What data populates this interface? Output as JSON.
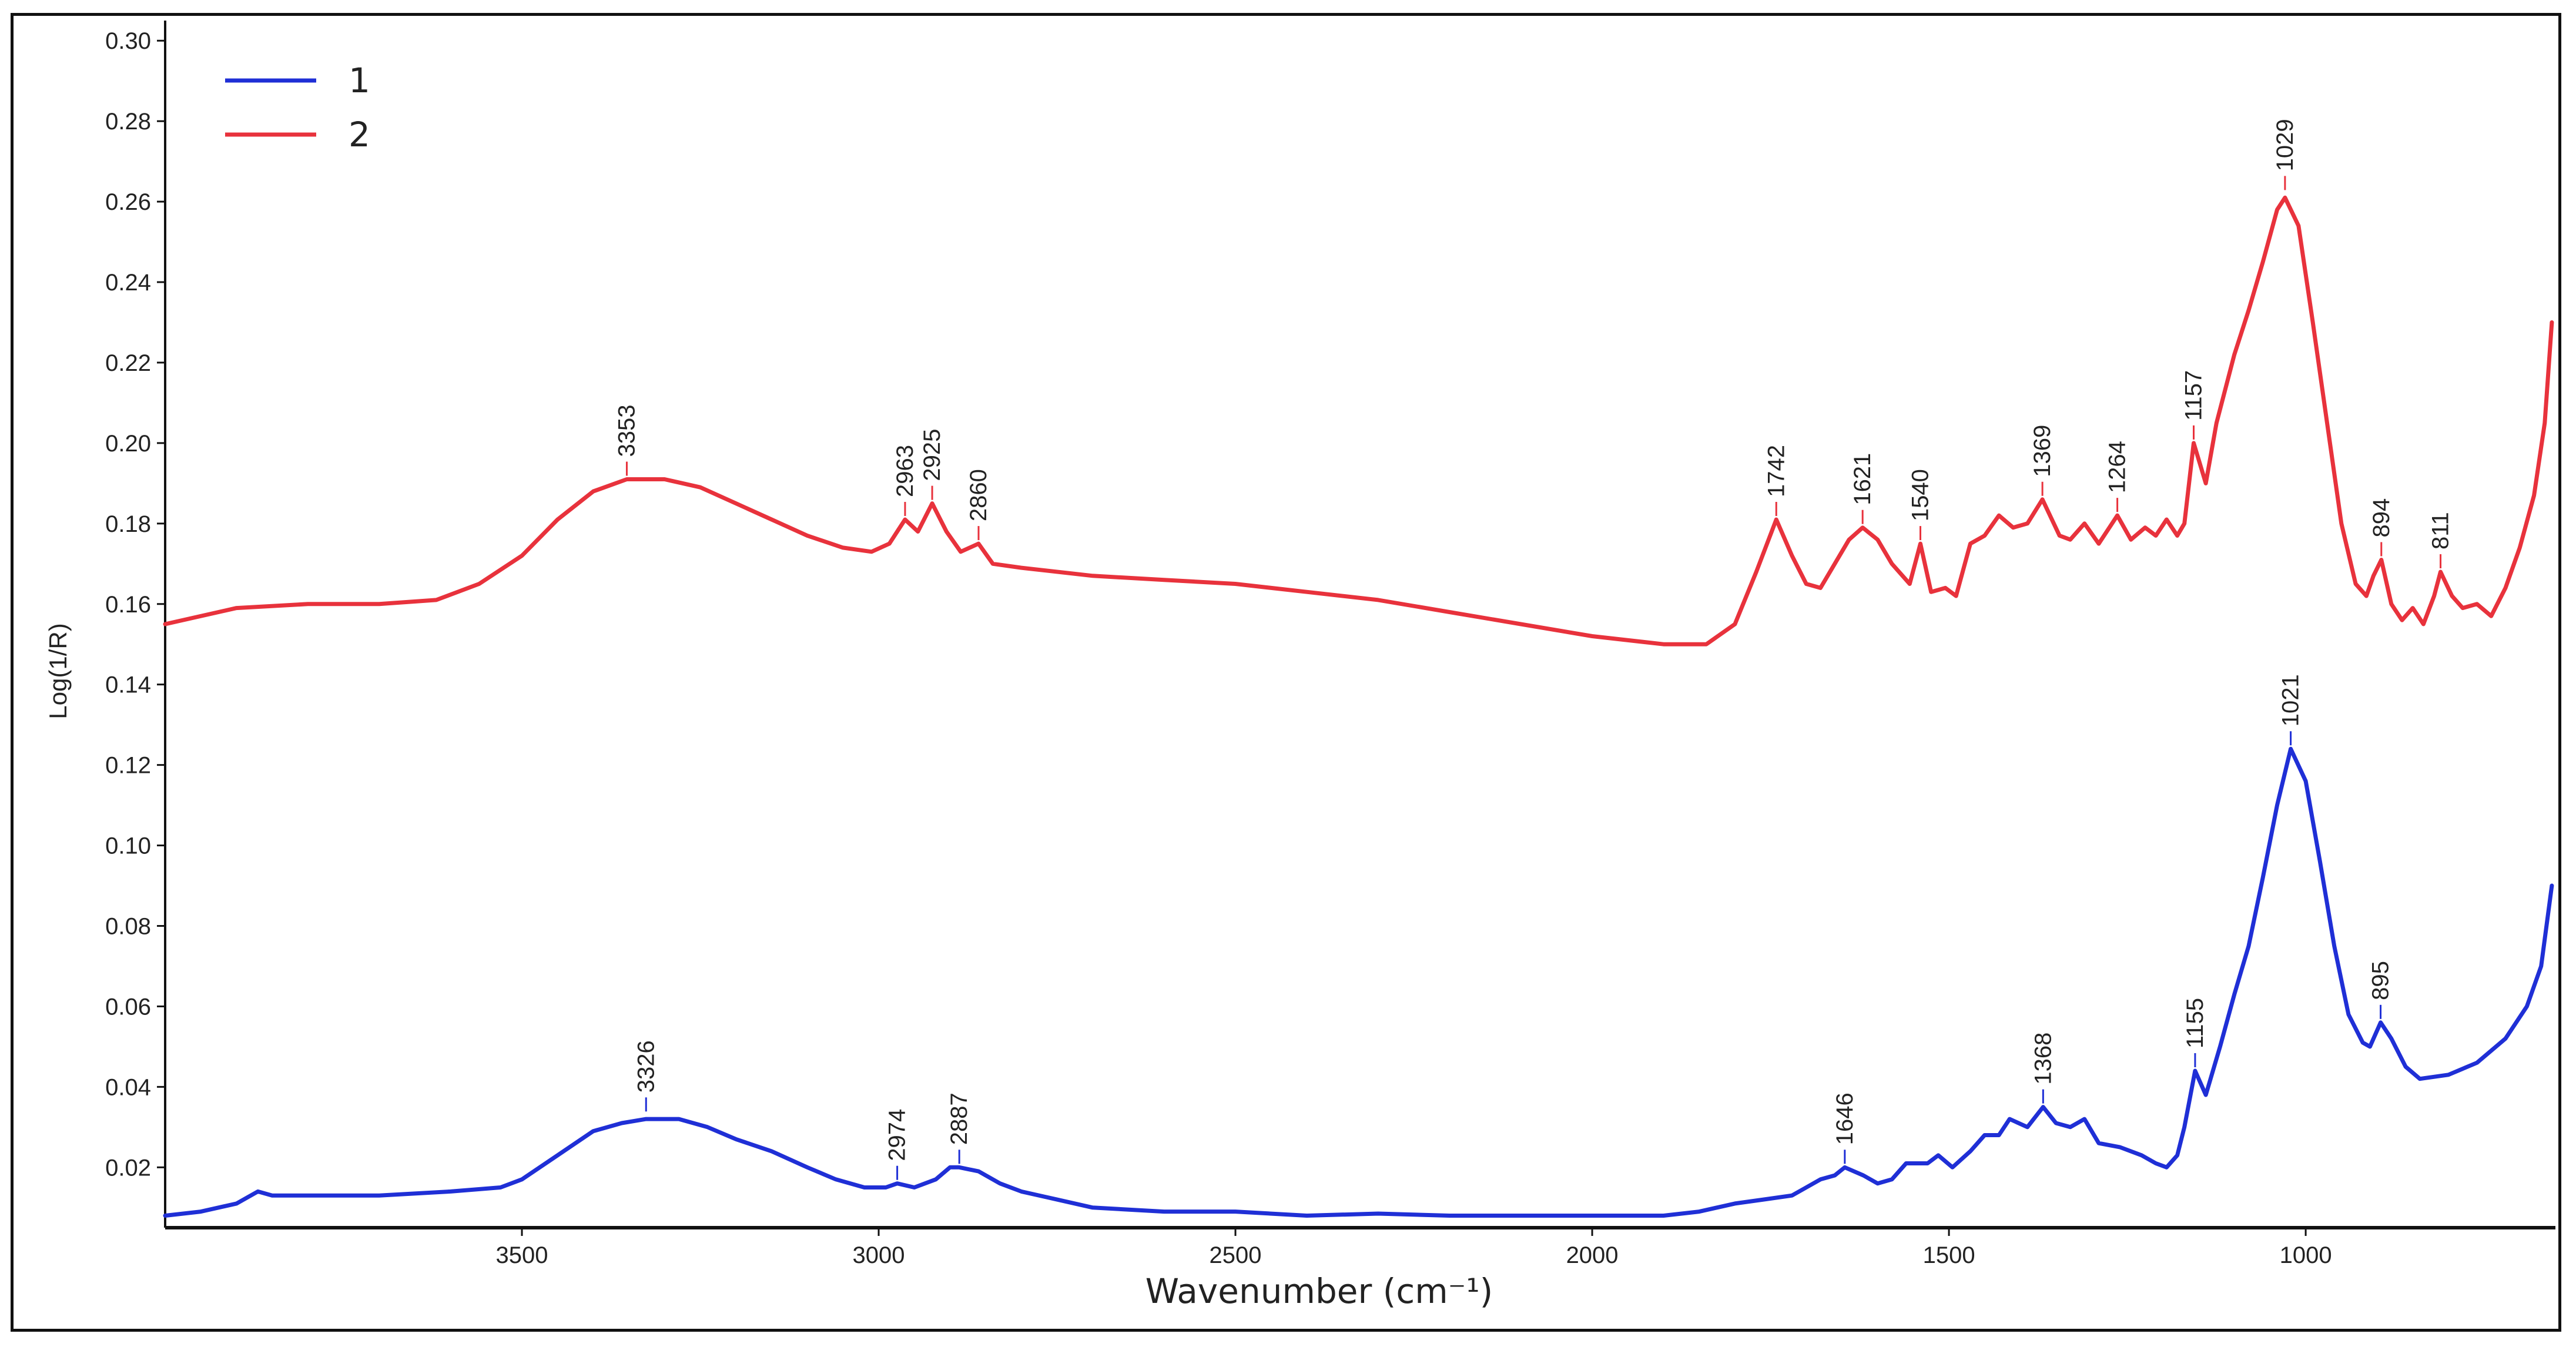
{
  "chart_data": {
    "type": "line",
    "title": "",
    "xlabel": "Wavenumber (cm⁻¹)",
    "ylabel": "Log(1/R)",
    "xlim": [
      4000,
      650
    ],
    "ylim": [
      0.005,
      0.305
    ],
    "x_reversed": true,
    "xticks": [
      3500,
      3000,
      2500,
      2000,
      1500,
      1000
    ],
    "yticks": [
      0.02,
      0.04,
      0.06,
      0.08,
      0.1,
      0.12,
      0.14,
      0.16,
      0.18,
      0.2,
      0.22,
      0.24,
      0.26,
      0.28,
      0.3
    ],
    "ytick_labels": [
      "0.02",
      "0.04",
      "0.06",
      "0.08",
      "0.10",
      "0.12",
      "0.14",
      "0.16",
      "0.18",
      "0.20",
      "0.22",
      "0.24",
      "0.26",
      "0.28",
      "0.30"
    ],
    "grid": false,
    "legend_position": "top-left",
    "series": [
      {
        "name": "1",
        "color": "#1f2fd6",
        "points": [
          [
            4000,
            0.008
          ],
          [
            3950,
            0.009
          ],
          [
            3900,
            0.011
          ],
          [
            3870,
            0.014
          ],
          [
            3850,
            0.013
          ],
          [
            3800,
            0.013
          ],
          [
            3700,
            0.013
          ],
          [
            3600,
            0.014
          ],
          [
            3530,
            0.015
          ],
          [
            3500,
            0.017
          ],
          [
            3450,
            0.023
          ],
          [
            3400,
            0.029
          ],
          [
            3360,
            0.031
          ],
          [
            3326,
            0.032
          ],
          [
            3280,
            0.032
          ],
          [
            3240,
            0.03
          ],
          [
            3200,
            0.027
          ],
          [
            3150,
            0.024
          ],
          [
            3100,
            0.02
          ],
          [
            3060,
            0.017
          ],
          [
            3020,
            0.015
          ],
          [
            2990,
            0.015
          ],
          [
            2974,
            0.016
          ],
          [
            2950,
            0.015
          ],
          [
            2920,
            0.017
          ],
          [
            2900,
            0.02
          ],
          [
            2887,
            0.02
          ],
          [
            2860,
            0.019
          ],
          [
            2830,
            0.016
          ],
          [
            2800,
            0.014
          ],
          [
            2750,
            0.012
          ],
          [
            2700,
            0.01
          ],
          [
            2600,
            0.009
          ],
          [
            2500,
            0.009
          ],
          [
            2400,
            0.008
          ],
          [
            2300,
            0.0085
          ],
          [
            2200,
            0.008
          ],
          [
            2100,
            0.008
          ],
          [
            2000,
            0.008
          ],
          [
            1900,
            0.008
          ],
          [
            1850,
            0.009
          ],
          [
            1800,
            0.011
          ],
          [
            1760,
            0.012
          ],
          [
            1720,
            0.013
          ],
          [
            1700,
            0.015
          ],
          [
            1680,
            0.017
          ],
          [
            1660,
            0.018
          ],
          [
            1646,
            0.02
          ],
          [
            1620,
            0.018
          ],
          [
            1600,
            0.016
          ],
          [
            1580,
            0.017
          ],
          [
            1560,
            0.021
          ],
          [
            1530,
            0.021
          ],
          [
            1515,
            0.023
          ],
          [
            1495,
            0.02
          ],
          [
            1470,
            0.024
          ],
          [
            1450,
            0.028
          ],
          [
            1430,
            0.028
          ],
          [
            1415,
            0.032
          ],
          [
            1390,
            0.03
          ],
          [
            1368,
            0.035
          ],
          [
            1350,
            0.031
          ],
          [
            1330,
            0.03
          ],
          [
            1310,
            0.032
          ],
          [
            1290,
            0.026
          ],
          [
            1260,
            0.025
          ],
          [
            1230,
            0.023
          ],
          [
            1210,
            0.021
          ],
          [
            1195,
            0.02
          ],
          [
            1180,
            0.023
          ],
          [
            1170,
            0.03
          ],
          [
            1155,
            0.044
          ],
          [
            1140,
            0.038
          ],
          [
            1120,
            0.05
          ],
          [
            1100,
            0.063
          ],
          [
            1080,
            0.075
          ],
          [
            1060,
            0.092
          ],
          [
            1040,
            0.11
          ],
          [
            1021,
            0.124
          ],
          [
            1000,
            0.116
          ],
          [
            980,
            0.096
          ],
          [
            960,
            0.075
          ],
          [
            940,
            0.058
          ],
          [
            920,
            0.051
          ],
          [
            910,
            0.05
          ],
          [
            895,
            0.056
          ],
          [
            880,
            0.052
          ],
          [
            860,
            0.045
          ],
          [
            840,
            0.042
          ],
          [
            800,
            0.043
          ],
          [
            760,
            0.046
          ],
          [
            720,
            0.052
          ],
          [
            690,
            0.06
          ],
          [
            670,
            0.07
          ],
          [
            655,
            0.09
          ]
        ]
      },
      {
        "name": "2",
        "color": "#e8323c",
        "points": [
          [
            4000,
            0.155
          ],
          [
            3900,
            0.159
          ],
          [
            3800,
            0.16
          ],
          [
            3700,
            0.16
          ],
          [
            3620,
            0.161
          ],
          [
            3560,
            0.165
          ],
          [
            3500,
            0.172
          ],
          [
            3450,
            0.181
          ],
          [
            3400,
            0.188
          ],
          [
            3353,
            0.191
          ],
          [
            3300,
            0.191
          ],
          [
            3250,
            0.189
          ],
          [
            3200,
            0.185
          ],
          [
            3150,
            0.181
          ],
          [
            3100,
            0.177
          ],
          [
            3050,
            0.174
          ],
          [
            3010,
            0.173
          ],
          [
            2985,
            0.175
          ],
          [
            2963,
            0.181
          ],
          [
            2945,
            0.178
          ],
          [
            2925,
            0.185
          ],
          [
            2905,
            0.178
          ],
          [
            2885,
            0.173
          ],
          [
            2860,
            0.175
          ],
          [
            2840,
            0.17
          ],
          [
            2800,
            0.169
          ],
          [
            2700,
            0.167
          ],
          [
            2600,
            0.166
          ],
          [
            2500,
            0.165
          ],
          [
            2400,
            0.163
          ],
          [
            2300,
            0.161
          ],
          [
            2200,
            0.158
          ],
          [
            2100,
            0.155
          ],
          [
            2000,
            0.152
          ],
          [
            1900,
            0.15
          ],
          [
            1840,
            0.15
          ],
          [
            1800,
            0.155
          ],
          [
            1770,
            0.168
          ],
          [
            1742,
            0.181
          ],
          [
            1720,
            0.172
          ],
          [
            1700,
            0.165
          ],
          [
            1680,
            0.164
          ],
          [
            1660,
            0.17
          ],
          [
            1640,
            0.176
          ],
          [
            1621,
            0.179
          ],
          [
            1600,
            0.176
          ],
          [
            1580,
            0.17
          ],
          [
            1555,
            0.165
          ],
          [
            1540,
            0.175
          ],
          [
            1525,
            0.163
          ],
          [
            1505,
            0.164
          ],
          [
            1490,
            0.162
          ],
          [
            1470,
            0.175
          ],
          [
            1450,
            0.177
          ],
          [
            1430,
            0.182
          ],
          [
            1410,
            0.179
          ],
          [
            1390,
            0.18
          ],
          [
            1369,
            0.186
          ],
          [
            1345,
            0.177
          ],
          [
            1330,
            0.176
          ],
          [
            1310,
            0.18
          ],
          [
            1290,
            0.175
          ],
          [
            1264,
            0.182
          ],
          [
            1245,
            0.176
          ],
          [
            1225,
            0.179
          ],
          [
            1210,
            0.177
          ],
          [
            1195,
            0.181
          ],
          [
            1180,
            0.177
          ],
          [
            1170,
            0.18
          ],
          [
            1157,
            0.2
          ],
          [
            1140,
            0.19
          ],
          [
            1125,
            0.205
          ],
          [
            1100,
            0.222
          ],
          [
            1080,
            0.233
          ],
          [
            1060,
            0.245
          ],
          [
            1040,
            0.258
          ],
          [
            1029,
            0.261
          ],
          [
            1010,
            0.254
          ],
          [
            990,
            0.23
          ],
          [
            970,
            0.205
          ],
          [
            950,
            0.18
          ],
          [
            930,
            0.165
          ],
          [
            915,
            0.162
          ],
          [
            905,
            0.167
          ],
          [
            894,
            0.171
          ],
          [
            880,
            0.16
          ],
          [
            865,
            0.156
          ],
          [
            850,
            0.159
          ],
          [
            835,
            0.155
          ],
          [
            820,
            0.162
          ],
          [
            811,
            0.168
          ],
          [
            795,
            0.162
          ],
          [
            780,
            0.159
          ],
          [
            760,
            0.16
          ],
          [
            740,
            0.157
          ],
          [
            720,
            0.164
          ],
          [
            700,
            0.174
          ],
          [
            680,
            0.187
          ],
          [
            665,
            0.205
          ],
          [
            655,
            0.23
          ]
        ]
      }
    ],
    "annotations": [
      {
        "series": "2",
        "label": "3353",
        "x": 3353,
        "y": 0.191
      },
      {
        "series": "2",
        "label": "2963",
        "x": 2963,
        "y": 0.181
      },
      {
        "series": "2",
        "label": "2925",
        "x": 2925,
        "y": 0.185
      },
      {
        "series": "2",
        "label": "2860",
        "x": 2860,
        "y": 0.175
      },
      {
        "series": "2",
        "label": "1742",
        "x": 1742,
        "y": 0.181
      },
      {
        "series": "2",
        "label": "1621",
        "x": 1621,
        "y": 0.179
      },
      {
        "series": "2",
        "label": "1540",
        "x": 1540,
        "y": 0.175
      },
      {
        "series": "2",
        "label": "1369",
        "x": 1369,
        "y": 0.186
      },
      {
        "series": "2",
        "label": "1264",
        "x": 1264,
        "y": 0.182
      },
      {
        "series": "2",
        "label": "1157",
        "x": 1157,
        "y": 0.2
      },
      {
        "series": "2",
        "label": "1029",
        "x": 1029,
        "y": 0.262
      },
      {
        "series": "2",
        "label": "894",
        "x": 894,
        "y": 0.171
      },
      {
        "series": "2",
        "label": "811",
        "x": 811,
        "y": 0.168
      },
      {
        "series": "1",
        "label": "3326",
        "x": 3326,
        "y": 0.033
      },
      {
        "series": "1",
        "label": "2974",
        "x": 2974,
        "y": 0.016
      },
      {
        "series": "1",
        "label": "2887",
        "x": 2887,
        "y": 0.02
      },
      {
        "series": "1",
        "label": "1646",
        "x": 1646,
        "y": 0.02
      },
      {
        "series": "1",
        "label": "1368",
        "x": 1368,
        "y": 0.035
      },
      {
        "series": "1",
        "label": "1155",
        "x": 1155,
        "y": 0.044
      },
      {
        "series": "1",
        "label": "1021",
        "x": 1021,
        "y": 0.124
      },
      {
        "series": "1",
        "label": "895",
        "x": 895,
        "y": 0.056
      }
    ],
    "legend": [
      {
        "label": "1",
        "color": "#1f2fd6"
      },
      {
        "label": "2",
        "color": "#e8323c"
      }
    ]
  }
}
